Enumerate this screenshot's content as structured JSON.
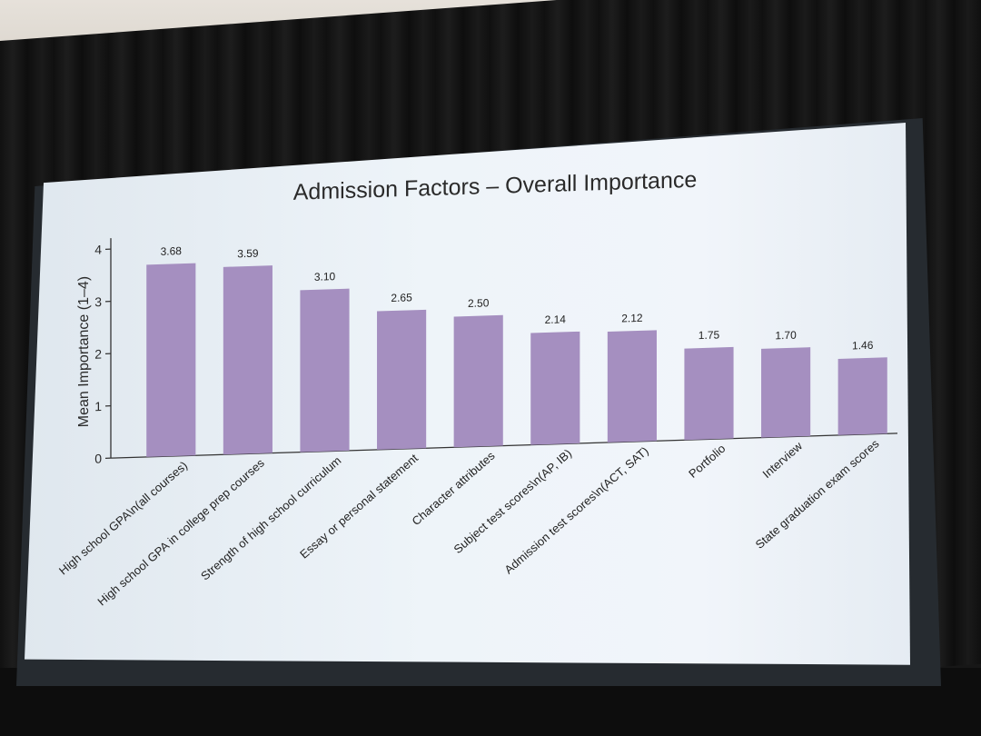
{
  "chart_data": {
    "type": "bar",
    "title": "Admission Factors – Overall Importance",
    "ylabel": "Mean Importance (1–4)",
    "xlabel": "",
    "ylim": [
      0,
      4
    ],
    "yticks": [
      0,
      1,
      2,
      3,
      4
    ],
    "grid": false,
    "categories": [
      "High school GPA\\n(all courses)",
      "High school GPA in college prep courses",
      "Strength of high school curriculum",
      "Essay or personal statement",
      "Character attributes",
      "Subject test scores\\n(AP, IB)",
      "Admission test scores\\n(ACT, SAT)",
      "Portfolio",
      "Interview",
      "State graduation exam scores"
    ],
    "values": [
      3.68,
      3.59,
      3.1,
      2.65,
      2.5,
      2.14,
      2.12,
      1.75,
      1.7,
      1.46
    ],
    "value_labels": [
      "3.68",
      "3.59",
      "3.10",
      "2.65",
      "2.50",
      "2.14",
      "2.12",
      "1.75",
      "1.70",
      "1.46"
    ],
    "bar_color": "#a58fc0"
  }
}
